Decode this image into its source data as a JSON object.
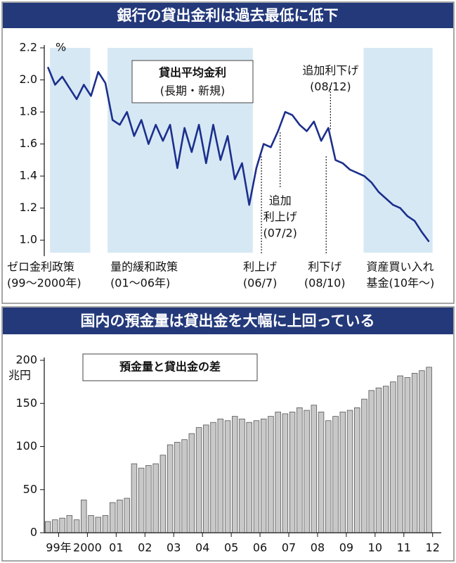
{
  "chart_data": [
    {
      "type": "line",
      "title": "銀行の貸出金利は過去最低に低下",
      "label_box": [
        "貸出平均金利",
        "(長期・新規)"
      ],
      "y_unit": "%",
      "x": [
        1999.125,
        1999.375,
        1999.625,
        1999.875,
        2000.125,
        2000.375,
        2000.625,
        2000.875,
        2001.125,
        2001.375,
        2001.625,
        2001.875,
        2002.125,
        2002.375,
        2002.625,
        2002.875,
        2003.125,
        2003.375,
        2003.625,
        2003.875,
        2004.125,
        2004.375,
        2004.625,
        2004.875,
        2005.125,
        2005.375,
        2005.625,
        2005.875,
        2006.125,
        2006.375,
        2006.625,
        2006.875,
        2007.125,
        2007.375,
        2007.625,
        2007.875,
        2008.125,
        2008.375,
        2008.625,
        2008.875,
        2009.125,
        2009.375,
        2009.625,
        2009.875,
        2010.125,
        2010.375,
        2010.625,
        2010.875,
        2011.125,
        2011.375,
        2011.625,
        2011.875,
        2012.125,
        2012.375
      ],
      "values": [
        2.08,
        1.97,
        2.02,
        1.95,
        1.88,
        1.97,
        1.9,
        2.05,
        1.98,
        1.75,
        1.72,
        1.8,
        1.65,
        1.75,
        1.6,
        1.72,
        1.62,
        1.72,
        1.45,
        1.7,
        1.55,
        1.72,
        1.48,
        1.72,
        1.5,
        1.65,
        1.38,
        1.48,
        1.22,
        1.45,
        1.6,
        1.58,
        1.68,
        1.8,
        1.78,
        1.72,
        1.68,
        1.74,
        1.62,
        1.7,
        1.5,
        1.48,
        1.44,
        1.42,
        1.4,
        1.36,
        1.3,
        1.26,
        1.22,
        1.2,
        1.15,
        1.12,
        1.05,
        0.99
      ],
      "color": "#1c2f8c",
      "xlim": [
        1999,
        2012.8
      ],
      "ylim": [
        0.9,
        2.2
      ],
      "yticks": [
        {
          "value": 1.0,
          "label": "1.0"
        },
        1.2,
        1.4,
        1.6,
        1.8,
        {
          "value": 2.0,
          "label": "2.0"
        },
        2.2
      ],
      "periods": [
        {
          "lines": [
            "ゼロ金利政策",
            "(99～2000年)"
          ],
          "start": 1999.2,
          "end": 2000.6
        },
        {
          "lines": [
            "量的緩和政策",
            "(01～06年)"
          ],
          "start": 2001.2,
          "end": 2006.25
        },
        {
          "lines": [
            "資産買い入れ",
            "基金(10年～)"
          ],
          "start": 2010.1,
          "end": 2012.5
        }
      ],
      "period_color": "#d6e8f4",
      "events": [
        {
          "lines": [
            "利上げ",
            "(06/7)"
          ],
          "x": 2006.55,
          "place": "below"
        },
        {
          "lines": [
            "追加",
            "利上げ",
            "(07/2)"
          ],
          "x": 2007.2,
          "place": "middle"
        },
        {
          "lines": [
            "利下げ",
            "(08/10)"
          ],
          "x": 2008.8,
          "place": "below"
        },
        {
          "lines": [
            "追加利下げ",
            "(08/12)"
          ],
          "x": 2008.95,
          "place": "above"
        }
      ]
    },
    {
      "type": "bar",
      "title": "国内の預金量は貸出金を大幅に上回っている",
      "label_box": [
        "預金量と貸出金の差"
      ],
      "y_unit": "兆円",
      "x": [
        1999.125,
        1999.375,
        1999.625,
        1999.875,
        2000.125,
        2000.375,
        2000.625,
        2000.875,
        2001.125,
        2001.375,
        2001.625,
        2001.875,
        2002.125,
        2002.375,
        2002.625,
        2002.875,
        2003.125,
        2003.375,
        2003.625,
        2003.875,
        2004.125,
        2004.375,
        2004.625,
        2004.875,
        2005.125,
        2005.375,
        2005.625,
        2005.875,
        2006.125,
        2006.375,
        2006.625,
        2006.875,
        2007.125,
        2007.375,
        2007.625,
        2007.875,
        2008.125,
        2008.375,
        2008.625,
        2008.875,
        2009.125,
        2009.375,
        2009.625,
        2009.875,
        2010.125,
        2010.375,
        2010.625,
        2010.875,
        2011.125,
        2011.375,
        2011.625,
        2011.875,
        2012.125,
        2012.375
      ],
      "values": [
        13,
        15,
        17,
        20,
        15,
        38,
        20,
        18,
        20,
        35,
        38,
        40,
        80,
        75,
        78,
        80,
        90,
        102,
        105,
        108,
        115,
        122,
        125,
        128,
        132,
        130,
        135,
        132,
        128,
        130,
        132,
        135,
        140,
        138,
        140,
        145,
        142,
        148,
        140,
        130,
        135,
        140,
        142,
        145,
        155,
        165,
        168,
        170,
        175,
        182,
        180,
        185,
        188,
        192
      ],
      "color": "#c8c8c8",
      "xlim": [
        1999,
        2012.8
      ],
      "ylim": [
        0,
        200
      ],
      "yticks": [
        0,
        50,
        100,
        150,
        200
      ],
      "xticks": [
        {
          "value": 1999.5,
          "label": "99年"
        },
        {
          "value": 2000.5,
          "label": "2000"
        },
        {
          "value": 2001.5,
          "label": "01"
        },
        {
          "value": 2002.5,
          "label": "02"
        },
        {
          "value": 2003.5,
          "label": "03"
        },
        {
          "value": 2004.5,
          "label": "04"
        },
        {
          "value": 2005.5,
          "label": "05"
        },
        {
          "value": 2006.5,
          "label": "06"
        },
        {
          "value": 2007.5,
          "label": "07"
        },
        {
          "value": 2008.5,
          "label": "08"
        },
        {
          "value": 2009.5,
          "label": "09"
        },
        {
          "value": 2010.5,
          "label": "10"
        },
        {
          "value": 2011.5,
          "label": "11"
        },
        {
          "value": 2012.5,
          "label": "12"
        }
      ]
    }
  ]
}
